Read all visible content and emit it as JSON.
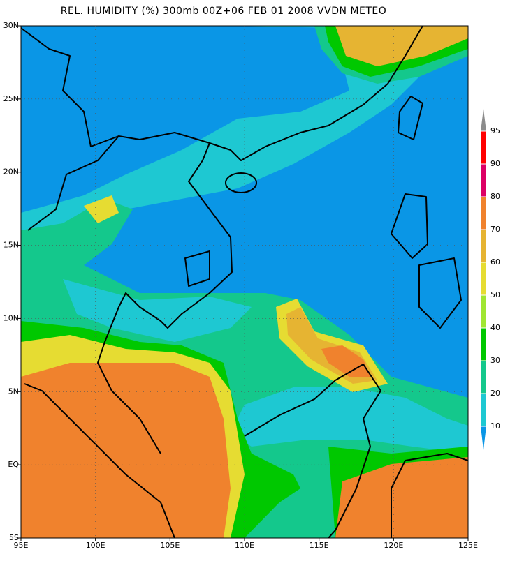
{
  "title": "REL. HUMIDITY (%) 300mb 00Z+06 FEB 01 2008 VVDN METEO",
  "x_labels": [
    "95E",
    "100E",
    "105E",
    "110E",
    "115E",
    "120E",
    "125E"
  ],
  "y_labels": [
    "30N",
    "25N",
    "20N",
    "15N",
    "10N",
    "5N",
    "EQ",
    "5S"
  ],
  "colorbar": {
    "levels": [
      10,
      20,
      30,
      40,
      50,
      60,
      70,
      80,
      90,
      95
    ],
    "colors": [
      "#1ec8d2",
      "#14c88c",
      "#00c800",
      "#a0e632",
      "#e6dc32",
      "#e6b432",
      "#f0822d",
      "#dc0064",
      "#ff0000"
    ],
    "under_color": "#0a96e6",
    "over_color": "#8c8c8c"
  }
}
